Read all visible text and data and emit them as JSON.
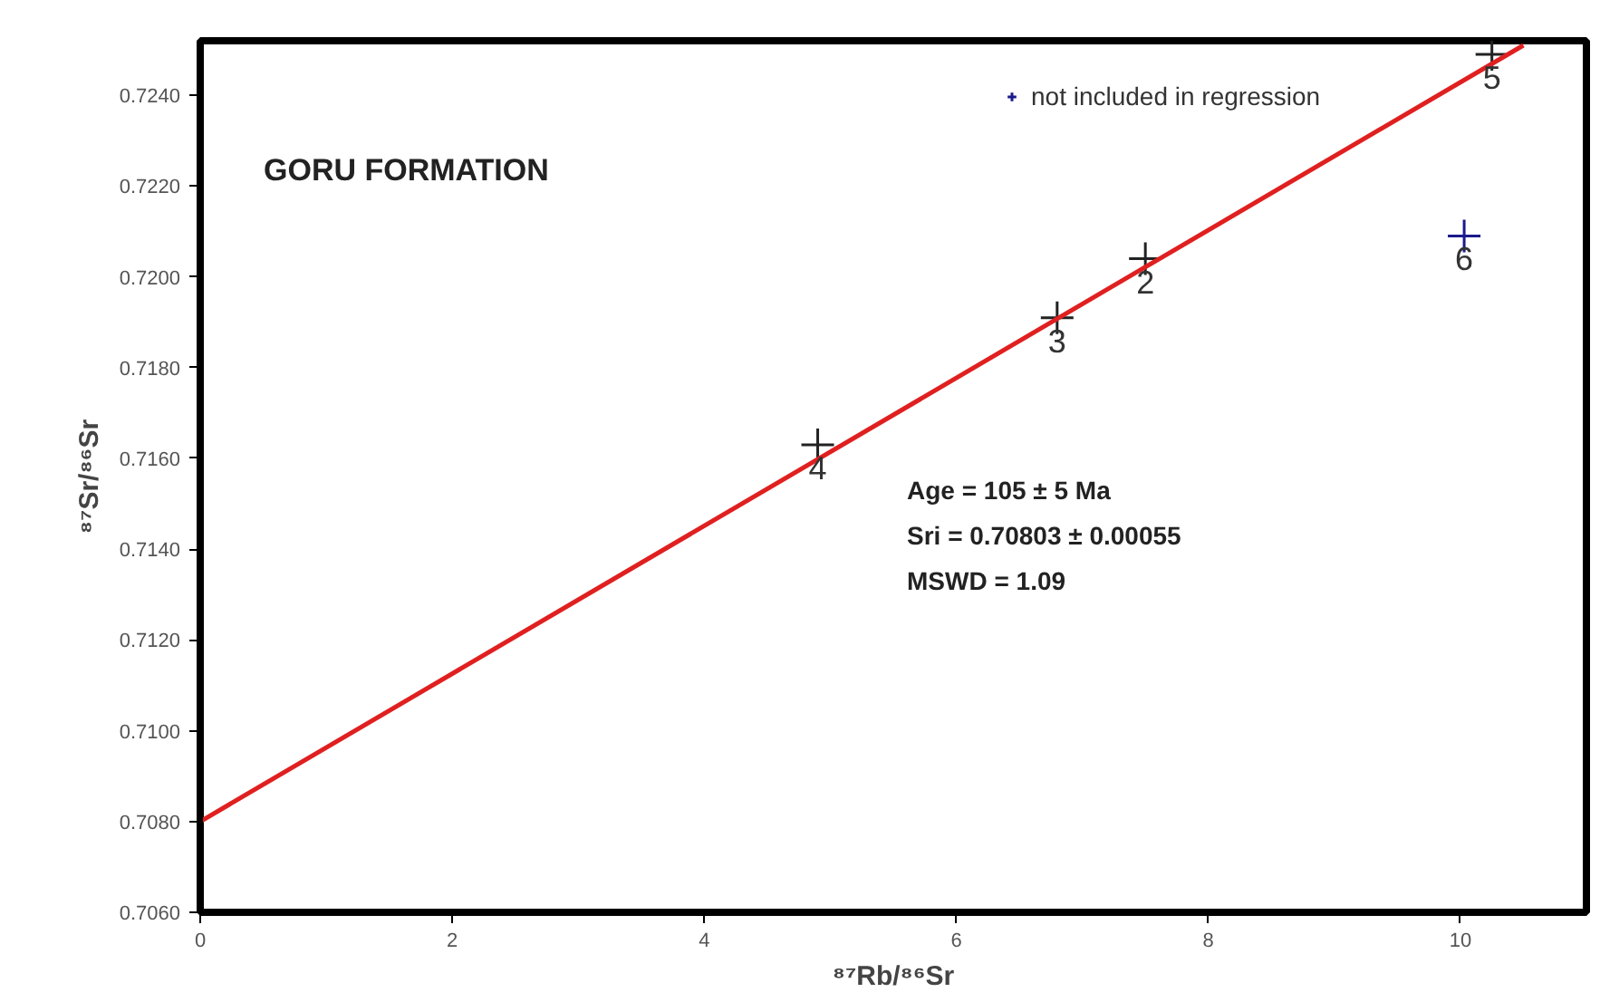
{
  "chart_data": {
    "type": "scatter",
    "title": "GORU FORMATION",
    "xlabel": "⁸⁷Rb/⁸⁶Sr",
    "ylabel": "⁸⁷Sr/⁸⁶Sr",
    "xlim": [
      0,
      11
    ],
    "ylim": [
      0.706,
      0.7252
    ],
    "xticks": [
      0,
      2,
      4,
      6,
      8,
      10
    ],
    "yticks": [
      {
        "value": 0.706,
        "label": "0.7060"
      },
      {
        "value": 0.708,
        "label": "0.7080"
      },
      {
        "value": 0.71,
        "label": "0.7100"
      },
      {
        "value": 0.712,
        "label": "0.7120"
      },
      {
        "value": 0.714,
        "label": "0.7140"
      },
      {
        "value": 0.716,
        "label": "0.7160"
      },
      {
        "value": 0.718,
        "label": "0.7180"
      },
      {
        "value": 0.72,
        "label": "0.7200"
      },
      {
        "value": 0.722,
        "label": "0.7220"
      },
      {
        "value": 0.724,
        "label": "0.7240"
      }
    ],
    "grid": false,
    "legend": "top right",
    "series": [
      {
        "marker": "cross",
        "color": "#222222",
        "x": [
          7.5,
          6.8,
          4.9,
          10.25
        ],
        "values": [
          0.7204,
          0.7191,
          0.7163,
          0.7249
        ]
      },
      {
        "marker": "cross",
        "name": "not included in regression",
        "color": "#1a1a8c",
        "x": [
          10.03
        ],
        "values": [
          0.7209
        ]
      },
      {
        "type": "line",
        "color": "#e02020",
        "x": [
          0,
          10.5
        ],
        "values": [
          0.708,
          0.7251
        ]
      }
    ],
    "annotations": [
      {
        "text": "2",
        "x": 7.5,
        "y": 0.7204
      },
      {
        "text": "3",
        "x": 6.8,
        "y": 0.7191
      },
      {
        "text": "4",
        "x": 4.9,
        "y": 0.7163
      },
      {
        "text": "5",
        "x": 10.25,
        "y": 0.7249
      },
      {
        "text": "6",
        "x": 10.03,
        "y": 0.7209
      },
      "Age      = 105 ± 5 Ma",
      "Sri       = 0.70803 ± 0.00055",
      "MSWD  = 1.09"
    ]
  }
}
